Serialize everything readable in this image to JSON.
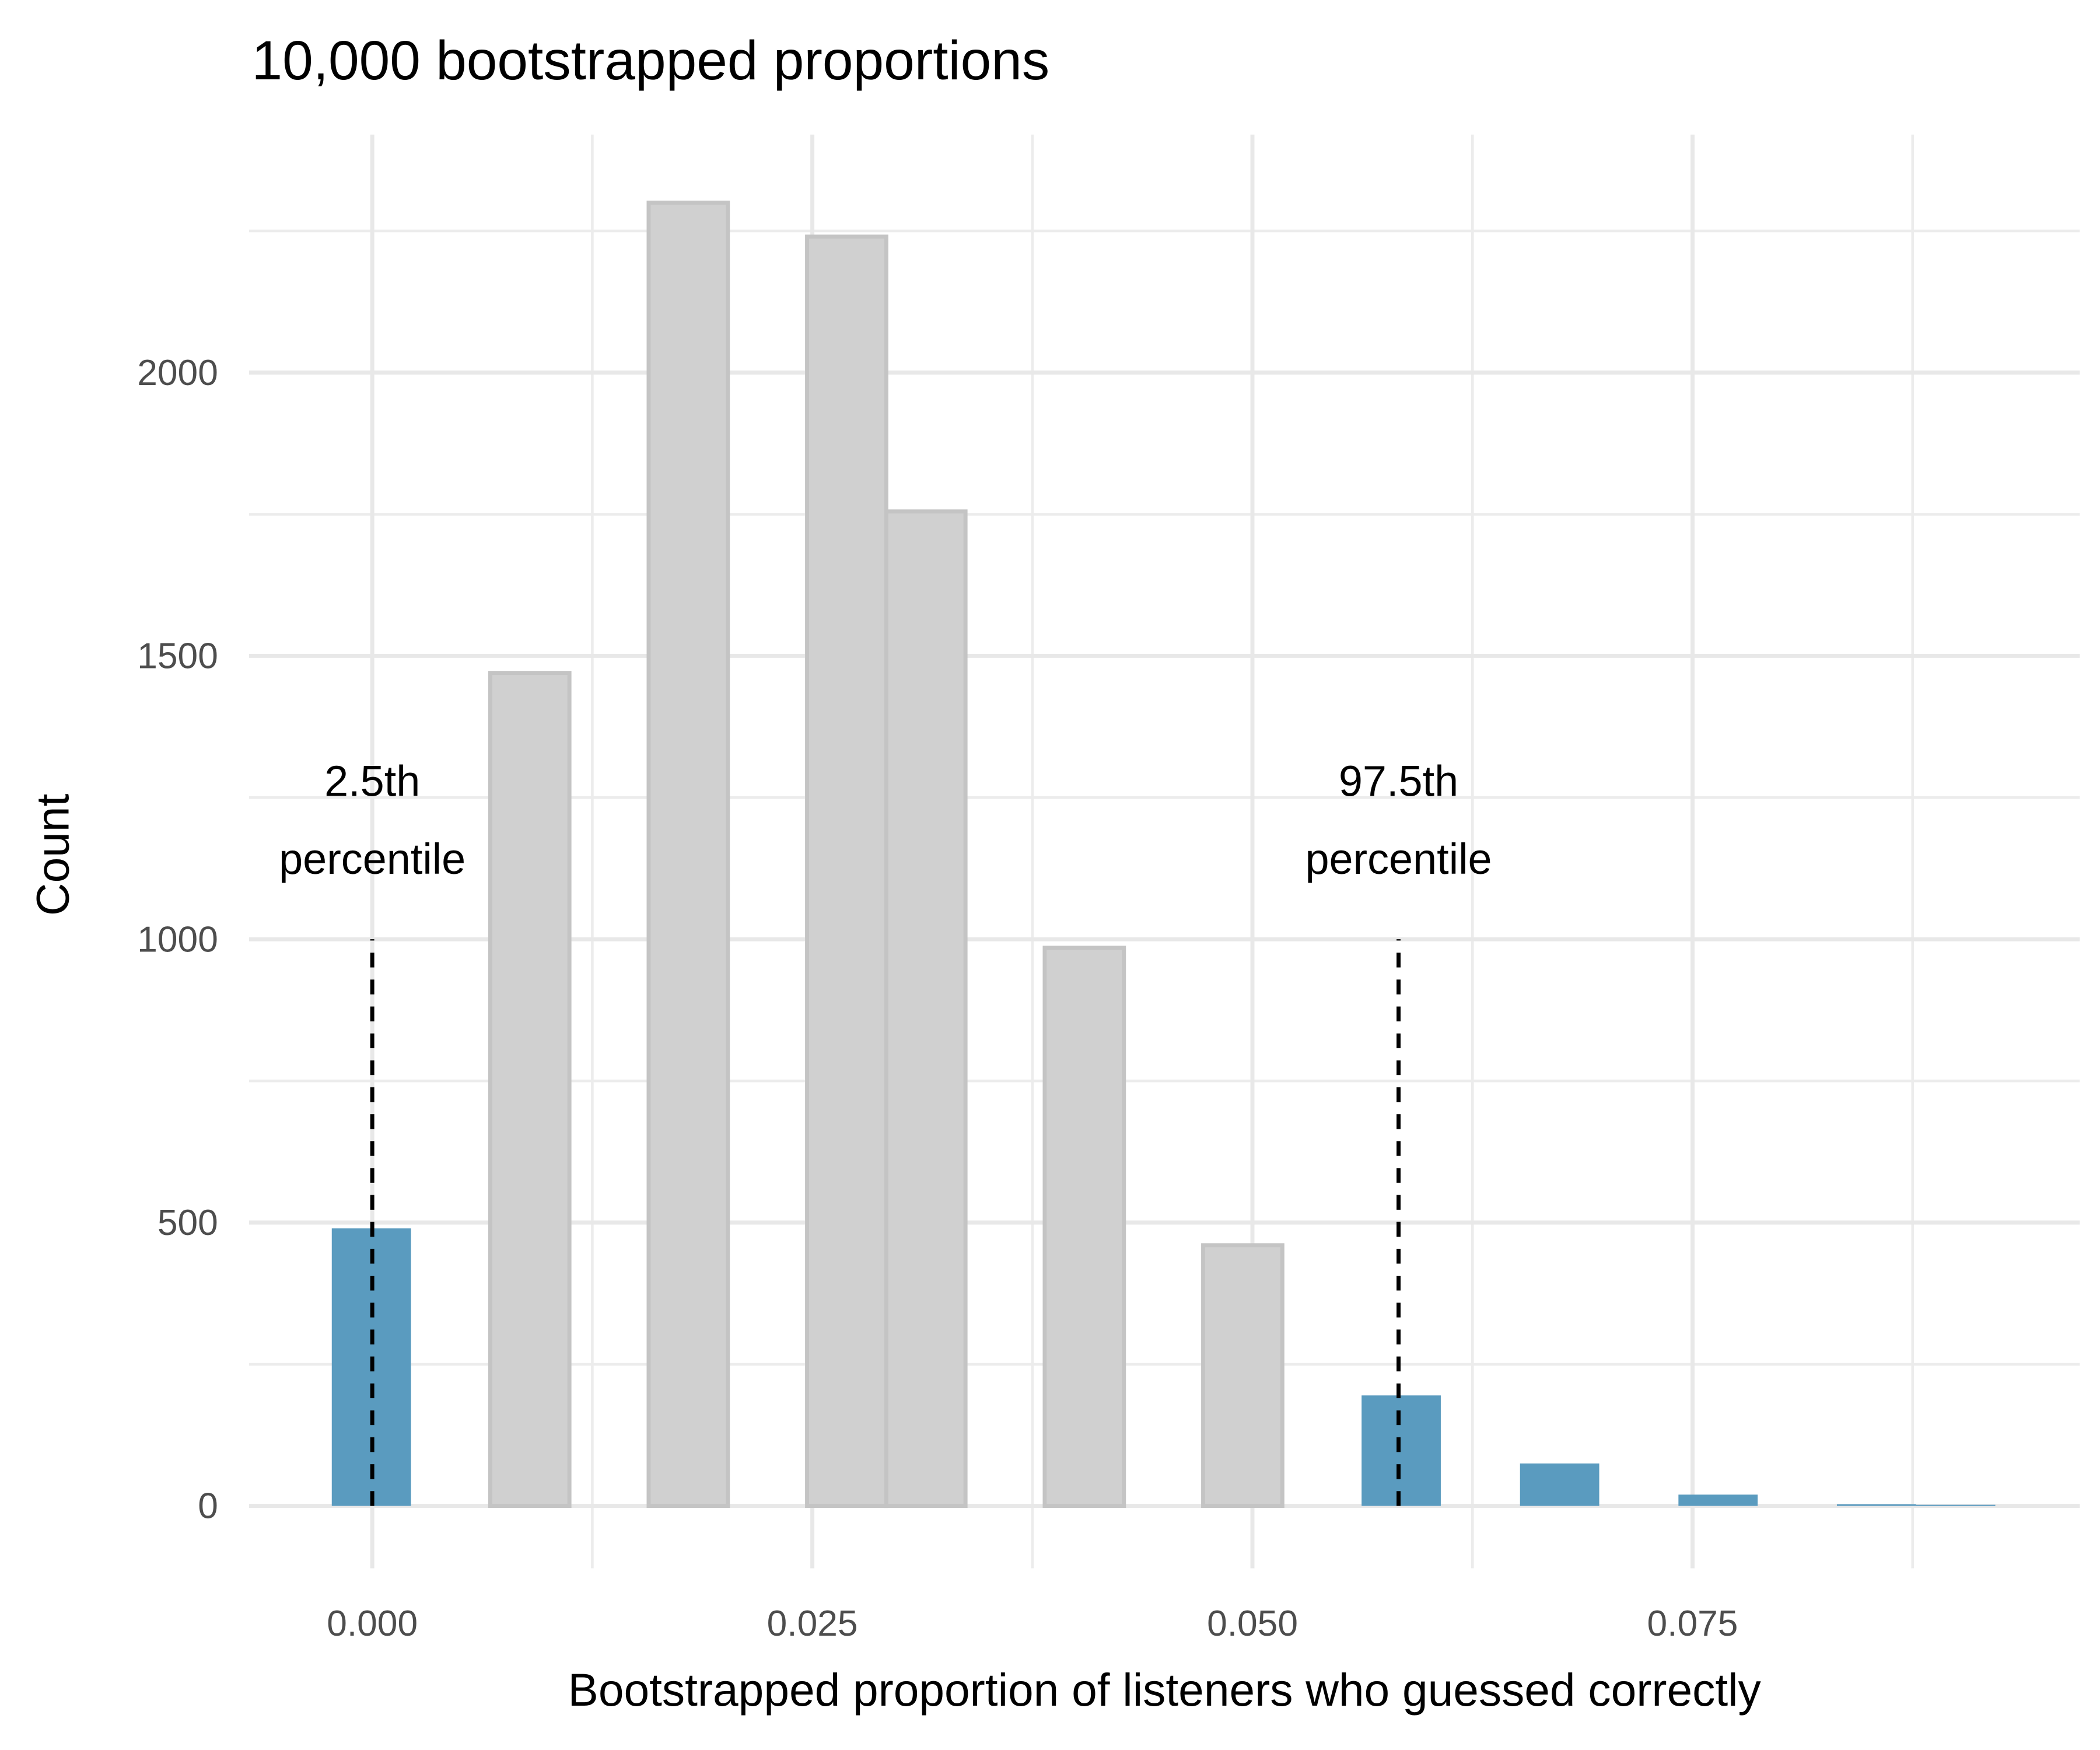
{
  "chart_data": {
    "type": "histogram",
    "title": "10,000 bootstrapped proportions",
    "x_label": "Bootstrapped proportion of listeners who guessed correctly",
    "y_label": "Count",
    "bins": [
      -0.0023,
      0.0022,
      0.0067,
      0.0112,
      0.0157,
      0.0202,
      0.0247,
      0.0292,
      0.0337,
      0.0382,
      0.0427,
      0.0472,
      0.0517,
      0.0562,
      0.0607,
      0.0652,
      0.0697,
      0.0742,
      0.0787,
      0.0832,
      0.0877,
      0.0922
    ],
    "values": [
      490,
      0,
      1470,
      0,
      2300,
      0,
      2240,
      1755,
      0,
      985,
      0,
      460,
      0,
      195,
      0,
      75,
      0,
      20,
      0,
      3,
      2
    ],
    "colors": [
      "#5a9bbf",
      "#d0d0d0",
      "#d0d0d0",
      "#d0d0d0",
      "#d0d0d0",
      "#d0d0d0",
      "#d0d0d0",
      "#d0d0d0",
      "#d0d0d0",
      "#d0d0d0",
      "#d0d0d0",
      "#d0d0d0",
      "#d0d0d0",
      "#5a9bbf",
      "#5a9bbf",
      "#5a9bbf",
      "#5a9bbf",
      "#5a9bbf",
      "#5a9bbf",
      "#5a9bbf",
      "#5a9bbf"
    ],
    "xlim": [
      -0.007,
      0.097
    ],
    "ylim": [
      -110,
      2420
    ],
    "xticks": [
      {
        "value": 0,
        "label": "0.000"
      },
      {
        "value": 0.025,
        "label": "0.025"
      },
      {
        "value": 0.05,
        "label": "0.050"
      },
      {
        "value": 0.075,
        "label": "0.075"
      }
    ],
    "yticks": [
      0,
      500,
      1000,
      1500,
      2000
    ],
    "grid": true,
    "annotations": [
      {
        "x": 0,
        "y_end": 1000,
        "lines": [
          "2.5th",
          "percentile"
        ]
      },
      {
        "x": 0.0583,
        "y_end": 1000,
        "lines": [
          "97.5th",
          "percentile"
        ]
      }
    ]
  }
}
